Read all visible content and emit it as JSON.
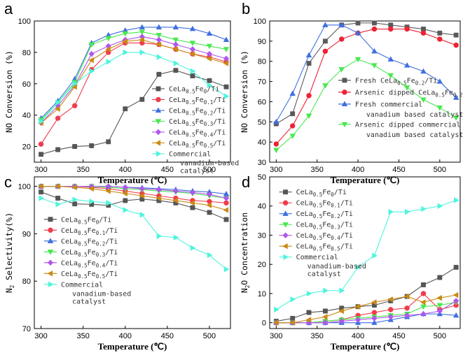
{
  "colors": {
    "s0": "#555555",
    "s1": "#f03c4c",
    "s2": "#3f6fe0",
    "s3": "#49e84f",
    "s4": "#b056ec",
    "s5": "#c98a14",
    "comm": "#4cf5dc",
    "fresh_b": "#5a5a5a",
    "arsenic_b": "#ee2233",
    "freshcomm_b": "#3f6fe0",
    "arseniccomm_b": "#49e84f"
  },
  "chart_data": [
    {
      "id": "a",
      "panel": "a",
      "type": "line",
      "xlabel": "Temperature (℃)",
      "ylabel": "NO Conversion (%)",
      "xlim": [
        292,
        525
      ],
      "ylim": [
        10,
        100
      ],
      "xticks": [
        300,
        350,
        400,
        450,
        500
      ],
      "yticks": [
        20,
        40,
        60,
        80,
        100
      ],
      "legend": {
        "position": "bottom-right",
        "x0": 0.6,
        "y0": 0.48
      },
      "series": [
        {
          "name": "CeLa0.5Fe0/Ti",
          "sub": "0",
          "color_key": "s0",
          "marker": "square",
          "x": [
            300,
            320,
            340,
            360,
            380,
            400,
            420,
            440,
            460,
            480,
            500,
            520
          ],
          "y": [
            15,
            18,
            20,
            20.5,
            23,
            44,
            50,
            66,
            68.5,
            65,
            62,
            58
          ]
        },
        {
          "name": "CeLa0.5Fe0.1/Ti",
          "sub": "0.1",
          "color_key": "s1",
          "marker": "circle",
          "x": [
            300,
            320,
            340,
            360,
            380,
            400,
            420,
            440,
            460,
            480,
            500,
            520
          ],
          "y": [
            21.5,
            38,
            46,
            69,
            80,
            86,
            86,
            85,
            82,
            79,
            77,
            74
          ]
        },
        {
          "name": "CeLa0.5Fe0.2/Ti",
          "sub": "0.2",
          "color_key": "s2",
          "marker": "triangle-up",
          "x": [
            300,
            320,
            340,
            360,
            380,
            400,
            420,
            440,
            460,
            480,
            500,
            520
          ],
          "y": [
            38,
            49,
            63,
            86,
            91,
            94,
            96,
            96,
            96,
            95,
            92,
            88
          ]
        },
        {
          "name": "CeLa0.5Fe0.3/Ti",
          "sub": "0.3",
          "color_key": "s3",
          "marker": "triangle-down",
          "x": [
            300,
            320,
            340,
            360,
            380,
            400,
            420,
            440,
            460,
            480,
            500,
            520
          ],
          "y": [
            37,
            48,
            61,
            85,
            89,
            92,
            93,
            91,
            88,
            86,
            84,
            82
          ]
        },
        {
          "name": "CeLa0.5Fe0.4/Ti",
          "sub": "0.4",
          "color_key": "s4",
          "marker": "diamond",
          "x": [
            300,
            320,
            340,
            360,
            380,
            400,
            420,
            440,
            460,
            480,
            500,
            520
          ],
          "y": [
            35,
            46,
            59,
            79,
            84,
            88,
            90,
            88,
            85,
            82,
            79,
            76
          ]
        },
        {
          "name": "CeLa0.5Fe0.5/Ti",
          "sub": "0.5",
          "color_key": "s5",
          "marker": "triangle-left",
          "x": [
            300,
            320,
            340,
            360,
            380,
            400,
            420,
            440,
            460,
            480,
            500,
            520
          ],
          "y": [
            35,
            44,
            58,
            75,
            82,
            87,
            88,
            85,
            82,
            79,
            76,
            73
          ]
        },
        {
          "name": "Commercial",
          "name_line2": "vanadium-based",
          "name_line3": "catalyst",
          "color_key": "comm",
          "marker": "triangle-right",
          "x": [
            300,
            320,
            340,
            360,
            380,
            400,
            420,
            440,
            460,
            480,
            500,
            520
          ],
          "y": [
            36,
            48,
            60,
            68,
            74,
            80,
            80,
            77,
            73,
            68,
            59,
            52
          ]
        }
      ]
    },
    {
      "id": "b",
      "panel": "b",
      "type": "line",
      "xlabel": "Temperature (℃)",
      "ylabel": "NO Conversion (%)",
      "xlim": [
        292,
        525
      ],
      "ylim": [
        30,
        100
      ],
      "xticks": [
        300,
        350,
        400,
        450,
        500
      ],
      "yticks": [
        30,
        40,
        50,
        60,
        70,
        80,
        90,
        100
      ],
      "legend": {
        "position": "bottom-right",
        "x0": 0.36,
        "y0": 0.42
      },
      "series": [
        {
          "name": "Fresh CeLa0.5Fe0.2/Ti",
          "pre": "Fresh CeLa",
          "sub": "0.2",
          "color_key": "fresh_b",
          "marker": "square",
          "x": [
            300,
            320,
            340,
            360,
            380,
            400,
            420,
            440,
            460,
            480,
            500,
            520
          ],
          "y": [
            49,
            54,
            79,
            90,
            98,
            99,
            99,
            98,
            97,
            96,
            94,
            93
          ]
        },
        {
          "name": "Arsenic dipped CeLa0.5Fe0.2/Ti",
          "pre": "Arsenic dipped CeLa",
          "sub": "0.2",
          "color_key": "arsenic_b",
          "marker": "circle",
          "x": [
            300,
            320,
            340,
            360,
            380,
            400,
            420,
            440,
            460,
            480,
            500,
            520
          ],
          "y": [
            39,
            48,
            63,
            85,
            91,
            94,
            96,
            96,
            96,
            94,
            91,
            88
          ]
        },
        {
          "name": "Fresh commercial",
          "name_line2": "vanadium based catalysts",
          "color_key": "freshcomm_b",
          "marker": "triangle-up",
          "x": [
            300,
            320,
            340,
            360,
            380,
            400,
            420,
            440,
            460,
            480,
            500,
            520
          ],
          "y": [
            50,
            64,
            83,
            98,
            98,
            94,
            85,
            81,
            78,
            75,
            70,
            62
          ]
        },
        {
          "name": "Arsenic dipped commercial",
          "name_line2": "vanadium based catalysts",
          "color_key": "arseniccomm_b",
          "marker": "triangle-down",
          "x": [
            300,
            320,
            340,
            360,
            380,
            400,
            420,
            440,
            460,
            480,
            500,
            520
          ],
          "y": [
            36,
            43,
            53,
            68,
            76,
            81,
            78,
            73,
            67,
            61,
            57,
            52
          ]
        }
      ]
    },
    {
      "id": "c",
      "panel": "c",
      "type": "line",
      "xlabel": "Temperature (℃)",
      "ylabel": "N2 Selectivity(%)",
      "xlim": [
        292,
        525
      ],
      "ylim": [
        70,
        102
      ],
      "xticks": [
        300,
        350,
        400,
        450,
        500
      ],
      "yticks": [
        70,
        80,
        90,
        100
      ],
      "legend": {
        "position": "left",
        "x0": 0.05,
        "y0": 0.28
      },
      "series": [
        {
          "name": "CeLa0.5Fe0/Ti",
          "sub": "0",
          "color_key": "s0",
          "marker": "square",
          "x": [
            300,
            320,
            340,
            360,
            380,
            400,
            420,
            440,
            460,
            480,
            500,
            520
          ],
          "y": [
            98.8,
            97.5,
            96.3,
            96.2,
            96.0,
            97.0,
            97.3,
            97.0,
            96.5,
            95.5,
            94.5,
            93.0
          ]
        },
        {
          "name": "CeLa0.5Fe0.1/Ti",
          "sub": "0.1",
          "color_key": "s1",
          "marker": "circle",
          "x": [
            300,
            320,
            340,
            360,
            380,
            400,
            420,
            440,
            460,
            480,
            500,
            520
          ],
          "y": [
            100,
            100,
            100,
            99.8,
            99.5,
            99.0,
            98.5,
            98.0,
            97.5,
            97.0,
            96.8,
            96.5
          ]
        },
        {
          "name": "CeLa0.5Fe0.2/Ti",
          "sub": "0.2",
          "color_key": "s2",
          "marker": "triangle-up",
          "x": [
            300,
            320,
            340,
            360,
            380,
            400,
            420,
            440,
            460,
            480,
            500,
            520
          ],
          "y": [
            100,
            100,
            100,
            100,
            100,
            99.8,
            99.7,
            99.5,
            99.3,
            99.0,
            98.8,
            98.4
          ]
        },
        {
          "name": "CeLa0.5Fe0.3/Ti",
          "sub": "0.3",
          "color_key": "s3",
          "marker": "triangle-down",
          "x": [
            300,
            320,
            340,
            360,
            380,
            400,
            420,
            440,
            460,
            480,
            500,
            520
          ],
          "y": [
            100,
            100,
            100,
            100,
            99.8,
            99.5,
            99.3,
            99.0,
            98.8,
            98.5,
            98.0,
            97.5
          ]
        },
        {
          "name": "CeLa0.5Fe0.4/Ti",
          "sub": "0.4",
          "color_key": "s4",
          "marker": "diamond",
          "x": [
            300,
            320,
            340,
            360,
            380,
            400,
            420,
            440,
            460,
            480,
            500,
            520
          ],
          "y": [
            100,
            100,
            100,
            100,
            100,
            99.8,
            99.5,
            99.3,
            99.0,
            98.7,
            98.3,
            97.5
          ]
        },
        {
          "name": "CeLa0.5Fe0.5/Ti",
          "sub": "0.5",
          "color_key": "s5",
          "marker": "triangle-left",
          "x": [
            300,
            320,
            340,
            360,
            380,
            400,
            420,
            440,
            460,
            480,
            500,
            520
          ],
          "y": [
            100,
            100,
            99.8,
            99.5,
            99.0,
            98.5,
            98.0,
            97.5,
            97.0,
            96.5,
            96.0,
            95.0
          ]
        },
        {
          "name": "Commercial",
          "name_line2": "vanadium-based",
          "name_line3": "catalyst",
          "color_key": "comm",
          "marker": "triangle-right",
          "x": [
            300,
            320,
            340,
            360,
            380,
            400,
            420,
            440,
            460,
            480,
            500,
            520
          ],
          "y": [
            97.5,
            96.2,
            97.2,
            96.8,
            96.5,
            95.0,
            94.0,
            89.5,
            89.2,
            87.0,
            85.5,
            82.5
          ]
        }
      ]
    },
    {
      "id": "d",
      "panel": "d",
      "type": "line",
      "xlabel": "Temperature (℃)",
      "ylabel": "N2O Concentration",
      "xlim": [
        292,
        525
      ],
      "ylim": [
        -2,
        50
      ],
      "xticks": [
        300,
        350,
        400,
        450,
        500
      ],
      "yticks": [
        0,
        10,
        20,
        30,
        40,
        50
      ],
      "legend": {
        "position": "top-left",
        "x0": 0.05,
        "y0": 0.1
      },
      "series": [
        {
          "name": "CeLa0.5Fe0/Ti",
          "sub": "0",
          "color_key": "s0",
          "marker": "square",
          "x": [
            300,
            320,
            340,
            360,
            380,
            400,
            420,
            440,
            460,
            480,
            500,
            520
          ],
          "y": [
            0.5,
            1.5,
            3.5,
            4,
            5,
            5.5,
            6,
            7.5,
            9,
            13,
            15.5,
            19
          ]
        },
        {
          "name": "CeLa0.5Fe0.1/Ti",
          "sub": "0.1",
          "color_key": "s1",
          "marker": "circle",
          "x": [
            300,
            320,
            340,
            360,
            380,
            400,
            420,
            440,
            460,
            480,
            500,
            520
          ],
          "y": [
            0,
            0,
            0,
            0.5,
            1,
            2.5,
            3.5,
            4.5,
            5,
            10,
            4.5,
            6
          ]
        },
        {
          "name": "CeLa0.5Fe0.2/Ti",
          "sub": "0.2",
          "color_key": "s2",
          "marker": "triangle-up",
          "x": [
            300,
            320,
            340,
            360,
            380,
            400,
            420,
            440,
            460,
            480,
            500,
            520
          ],
          "y": [
            0,
            0,
            0,
            0,
            0,
            0,
            0,
            1,
            2,
            3,
            3,
            2.5
          ]
        },
        {
          "name": "CeLa0.5Fe0.3/Ti",
          "sub": "0.3",
          "color_key": "s3",
          "marker": "triangle-down",
          "x": [
            300,
            320,
            340,
            360,
            380,
            400,
            420,
            440,
            460,
            480,
            500,
            520
          ],
          "y": [
            0,
            0,
            0,
            0.5,
            1,
            1.5,
            2,
            2.5,
            3,
            5.5,
            6,
            7
          ]
        },
        {
          "name": "CeLa0.5Fe0.4/Ti",
          "sub": "0.4",
          "color_key": "s4",
          "marker": "diamond",
          "x": [
            300,
            320,
            340,
            360,
            380,
            400,
            420,
            440,
            460,
            480,
            500,
            520
          ],
          "y": [
            0,
            0,
            0,
            0,
            0.5,
            1,
            1.5,
            2,
            2.5,
            3,
            4,
            7.5
          ]
        },
        {
          "name": "CeLa0.5Fe0.5/Ti",
          "sub": "0.5",
          "color_key": "s5",
          "marker": "triangle-left",
          "x": [
            300,
            320,
            340,
            360,
            380,
            400,
            420,
            440,
            460,
            480,
            500,
            520
          ],
          "y": [
            0,
            0,
            1,
            2,
            4,
            5.5,
            7,
            8,
            9,
            7,
            8.5,
            9.5
          ]
        },
        {
          "name": "Commercial",
          "name_line2": "vanadium-based",
          "name_line3": "catalyst",
          "color_key": "comm",
          "marker": "triangle-right",
          "x": [
            300,
            320,
            340,
            360,
            380,
            400,
            420,
            440,
            460,
            480,
            500,
            520
          ],
          "y": [
            4.5,
            8,
            10,
            11,
            11,
            19,
            23,
            38,
            38,
            39,
            40,
            42
          ]
        }
      ]
    }
  ]
}
